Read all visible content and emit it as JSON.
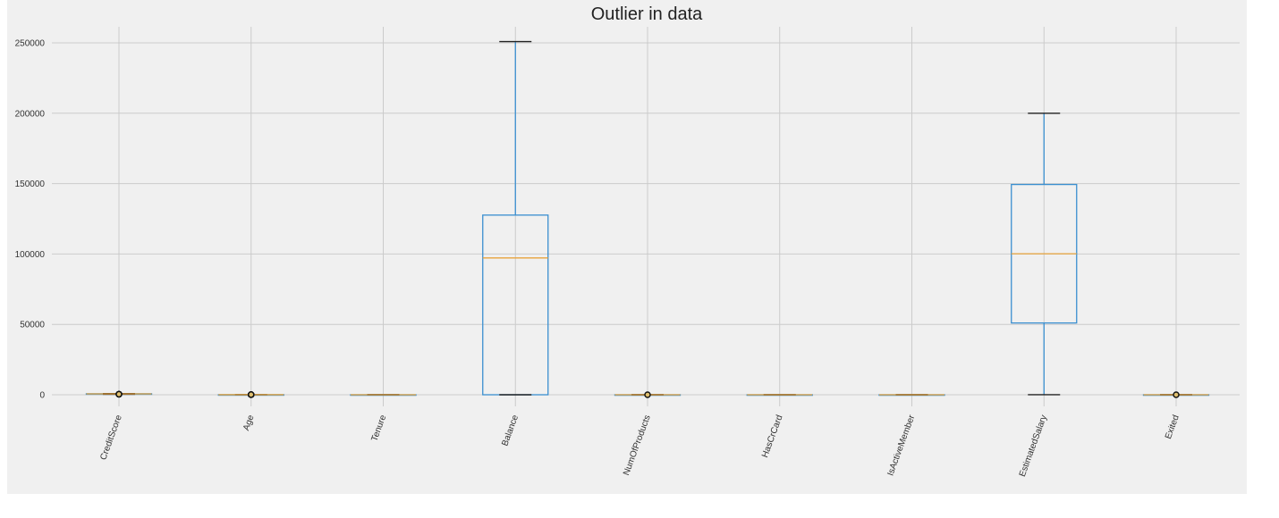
{
  "chart_data": {
    "type": "box",
    "title": "Outlier in data",
    "xlabel": "",
    "ylabel": "",
    "ylim": [
      -15000,
      263000
    ],
    "yticks": [
      0,
      50000,
      100000,
      150000,
      200000,
      250000
    ],
    "ytick_labels": [
      "0",
      "50000",
      "100000",
      "150000",
      "200000",
      "250000"
    ],
    "grid": true,
    "colors": {
      "background": "#f0f0f0",
      "grid": "#cbcbcb",
      "box": "#3a8fd0",
      "median": "#e8a33c",
      "cap": "#222222",
      "flier_edge": "#111111",
      "flier_face": "#e0c070"
    },
    "categories": [
      "CreditScore",
      "Age",
      "Tenure",
      "Balance",
      "NumOfProducts",
      "HasCrCard",
      "IsActiveMember",
      "EstimatedSalary",
      "Exited"
    ],
    "boxes": [
      {
        "name": "CreditScore",
        "whislo": 383,
        "q1": 584,
        "med": 652,
        "q3": 718,
        "whishi": 850,
        "fliers": [
          350,
          359,
          363,
          365,
          367,
          373,
          376,
          382
        ]
      },
      {
        "name": "Age",
        "whislo": 18,
        "q1": 32,
        "med": 37,
        "q3": 44,
        "whishi": 62,
        "fliers": [
          63,
          65,
          70,
          75,
          80,
          85,
          92
        ]
      },
      {
        "name": "Tenure",
        "whislo": 0,
        "q1": 3,
        "med": 5,
        "q3": 7,
        "whishi": 10,
        "fliers": []
      },
      {
        "name": "Balance",
        "whislo": 0,
        "q1": 0,
        "med": 97199,
        "q3": 127644,
        "whishi": 250898,
        "fliers": []
      },
      {
        "name": "NumOfProducts",
        "whislo": 1,
        "q1": 1,
        "med": 1,
        "q3": 2,
        "whishi": 3,
        "fliers": [
          4
        ]
      },
      {
        "name": "HasCrCard",
        "whislo": 0,
        "q1": 0,
        "med": 1,
        "q3": 1,
        "whishi": 1,
        "fliers": []
      },
      {
        "name": "IsActiveMember",
        "whislo": 0,
        "q1": 0,
        "med": 1,
        "q3": 1,
        "whishi": 1,
        "fliers": []
      },
      {
        "name": "EstimatedSalary",
        "whislo": 11.58,
        "q1": 51002,
        "med": 100194,
        "q3": 149388,
        "whishi": 199992,
        "fliers": []
      },
      {
        "name": "Exited",
        "whislo": 0,
        "q1": 0,
        "med": 0,
        "q3": 0,
        "whishi": 0,
        "fliers": [
          1
        ]
      }
    ]
  }
}
